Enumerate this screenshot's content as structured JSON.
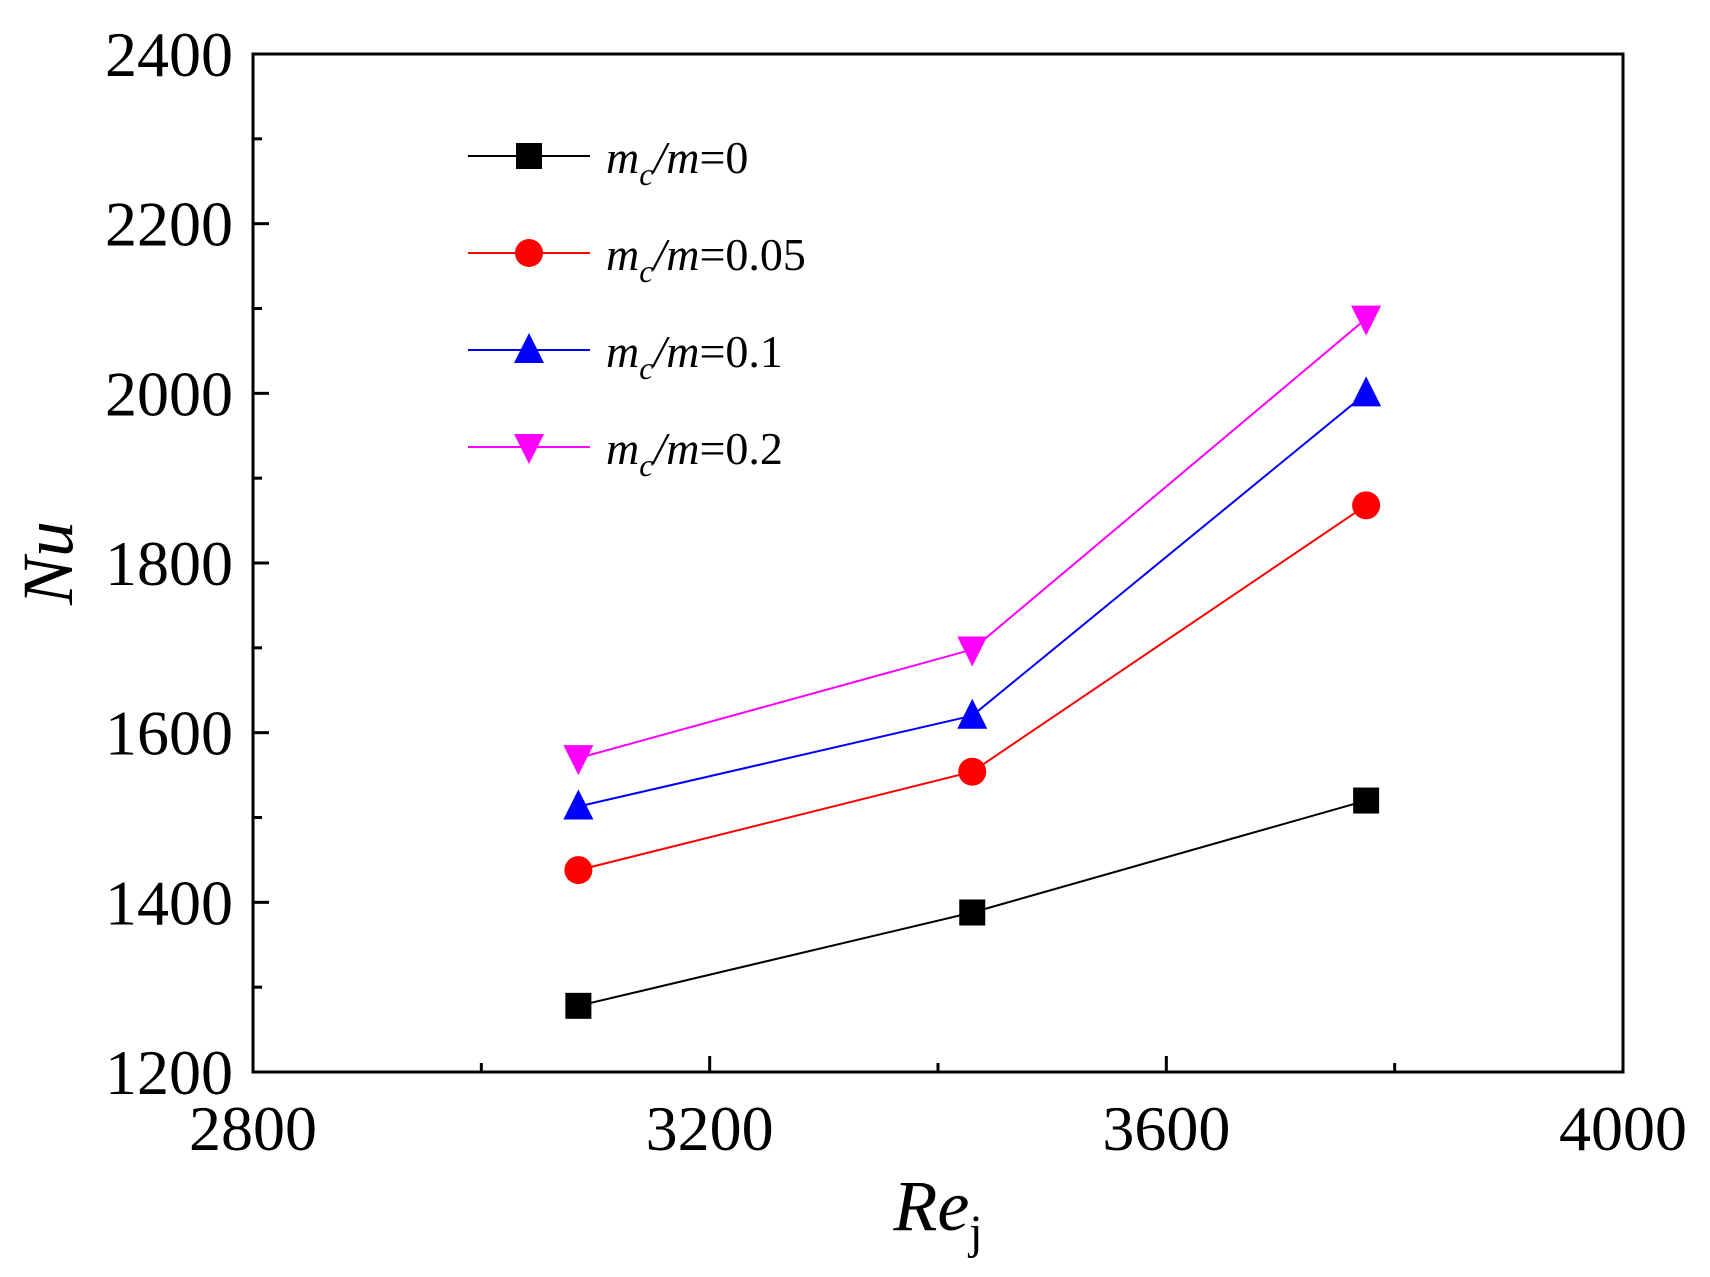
{
  "chart_data": {
    "type": "line",
    "title": "",
    "xlabel": {
      "main": "Re",
      "sub": "j"
    },
    "ylabel": "Nu",
    "xlim": [
      2800,
      4000
    ],
    "ylim": [
      1200,
      2400
    ],
    "xticks": [
      2800,
      3200,
      3600,
      4000
    ],
    "yticks": [
      1200,
      1400,
      1600,
      1800,
      2000,
      2200,
      2400
    ],
    "x": [
      3085,
      3430,
      3775
    ],
    "legend_position": "top-left",
    "series": [
      {
        "name": "m_c/m=0",
        "label_prefix": "m",
        "label_sub": "c",
        "label_mid": "/m",
        "label_value": "=0",
        "color": "#000000",
        "marker": "square",
        "values": [
          1278,
          1388,
          1520
        ]
      },
      {
        "name": "m_c/m=0.05",
        "label_prefix": "m",
        "label_sub": "c",
        "label_mid": "/m",
        "label_value": "=0.05",
        "color": "#ff0000",
        "marker": "circle",
        "values": [
          1438,
          1554,
          1868
        ]
      },
      {
        "name": "m_c/m=0.1",
        "label_prefix": "m",
        "label_sub": "c",
        "label_mid": "/m",
        "label_value": "=0.1",
        "color": "#0000ff",
        "marker": "triangle-up",
        "values": [
          1513,
          1620,
          2000
        ]
      },
      {
        "name": "m_c/m=0.2",
        "label_prefix": "m",
        "label_sub": "c",
        "label_mid": "/m",
        "label_value": "=0.2",
        "color": "#ff00ff",
        "marker": "triangle-down",
        "values": [
          1570,
          1698,
          2088
        ]
      }
    ]
  }
}
